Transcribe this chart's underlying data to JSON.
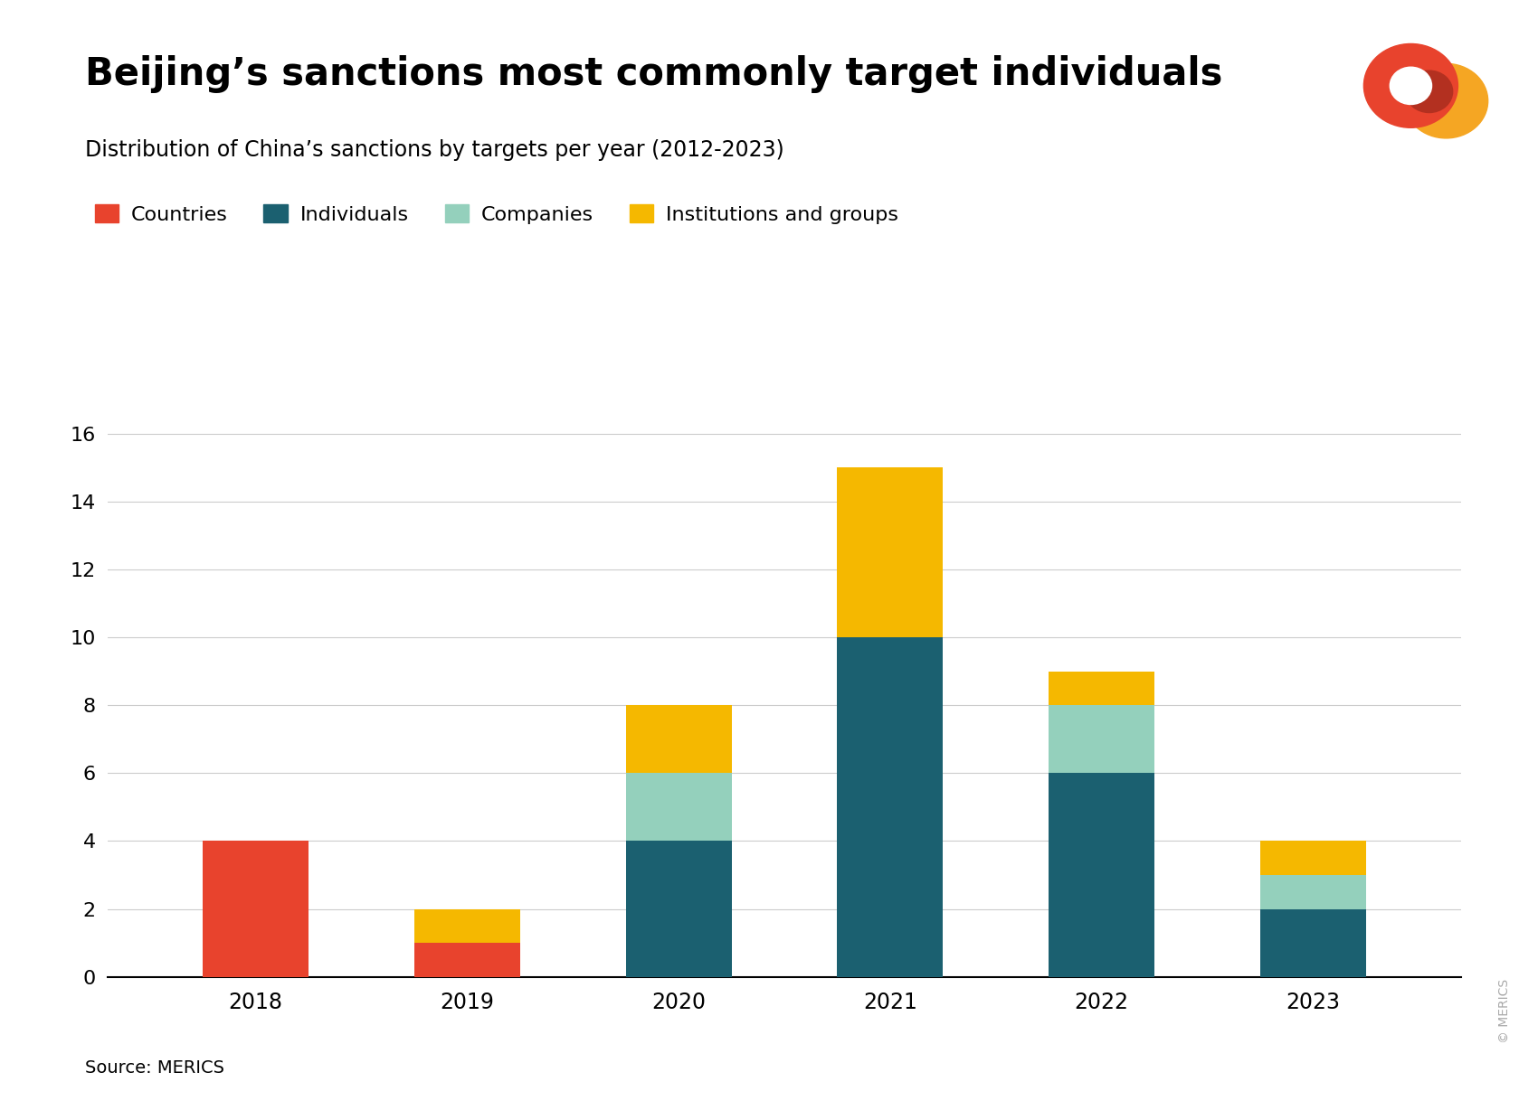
{
  "title": "Beijing’s sanctions most commonly target individuals",
  "subtitle": "Distribution of China’s sanctions by targets per year (2012-2023)",
  "source": "Source: MERICS",
  "years": [
    "2018",
    "2019",
    "2020",
    "2021",
    "2022",
    "2023"
  ],
  "categories": [
    "Countries",
    "Individuals",
    "Companies",
    "Institutions and groups"
  ],
  "colors": [
    "#e8432d",
    "#1b6070",
    "#94d0bc",
    "#f5b800"
  ],
  "data": {
    "Countries": [
      4,
      1,
      0,
      0,
      0,
      0
    ],
    "Individuals": [
      0,
      0,
      4,
      10,
      6,
      2
    ],
    "Companies": [
      0,
      0,
      2,
      0,
      2,
      1
    ],
    "Institutions and groups": [
      0,
      1,
      2,
      5,
      1,
      1
    ]
  },
  "ylim": [
    0,
    17
  ],
  "yticks": [
    0,
    2,
    4,
    6,
    8,
    10,
    12,
    14,
    16
  ],
  "background_color": "#ffffff",
  "title_fontsize": 30,
  "subtitle_fontsize": 17,
  "tick_fontsize": 16,
  "legend_fontsize": 16,
  "source_fontsize": 14,
  "bar_width": 0.5,
  "grid_color": "#cccccc",
  "axis_line_color": "#000000",
  "text_color": "#000000",
  "copyright_color": "#aaaaaa"
}
